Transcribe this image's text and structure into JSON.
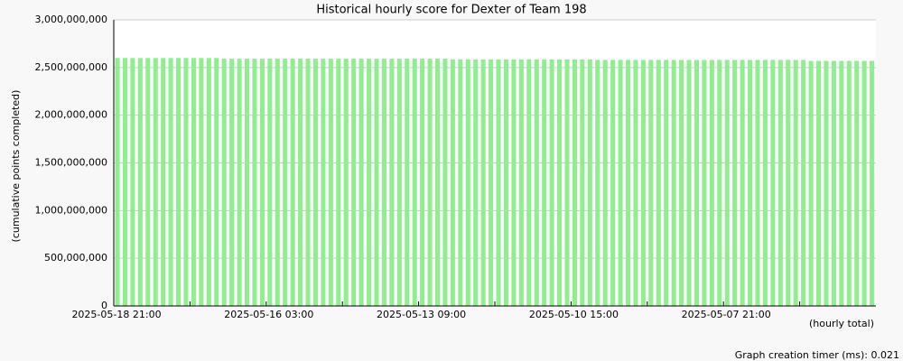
{
  "chart_data": {
    "type": "bar",
    "title": "Historical hourly score for Dexter of Team 198",
    "y_label": "(cumulative points completed)",
    "x_label": "(hourly total)",
    "footer": "Graph creation timer (ms): 0.021",
    "color": "#90ee90",
    "grid": true,
    "ylim": [
      0,
      3000000000
    ],
    "yticks": [
      {
        "value": 0,
        "label": "0"
      },
      {
        "value": 500000000,
        "label": "500,000,000"
      },
      {
        "value": 1000000000,
        "label": "1,000,000,000"
      },
      {
        "value": 1500000000,
        "label": "1,500,000,000"
      },
      {
        "value": 2000000000,
        "label": "2,000,000,000"
      },
      {
        "value": 2500000000,
        "label": "2,500,000,000"
      },
      {
        "value": 3000000000,
        "label": "3,000,000,000"
      }
    ],
    "categories": [
      "2025-05-18 21:00",
      null,
      null,
      null,
      null,
      null,
      null,
      null,
      null,
      null,
      null,
      null,
      null,
      null,
      null,
      null,
      null,
      null,
      null,
      null,
      "2025-05-16 03:00",
      null,
      null,
      null,
      null,
      null,
      null,
      null,
      null,
      null,
      null,
      null,
      null,
      null,
      null,
      null,
      null,
      null,
      null,
      null,
      "2025-05-13 09:00",
      null,
      null,
      null,
      null,
      null,
      null,
      null,
      null,
      null,
      null,
      null,
      null,
      null,
      null,
      null,
      null,
      null,
      null,
      null,
      "2025-05-10 15:00",
      null,
      null,
      null,
      null,
      null,
      null,
      null,
      null,
      null,
      null,
      null,
      null,
      null,
      null,
      null,
      null,
      null,
      null,
      null,
      "2025-05-07 21:00",
      null,
      null,
      null,
      null,
      null,
      null,
      null,
      null,
      null,
      null,
      null,
      null,
      null,
      null,
      null,
      null,
      null,
      null,
      null
    ],
    "values": [
      2600000000,
      2600000000,
      2600000000,
      2600000000,
      2600000000,
      2600000000,
      2600000000,
      2600000000,
      2600000000,
      2600000000,
      2600000000,
      2600000000,
      2600000000,
      2600000000,
      2592000000,
      2592000000,
      2592000000,
      2592000000,
      2592000000,
      2592000000,
      2592000000,
      2592000000,
      2592000000,
      2592000000,
      2592000000,
      2592000000,
      2592000000,
      2592000000,
      2592000000,
      2592000000,
      2592000000,
      2592000000,
      2592000000,
      2592000000,
      2592000000,
      2592000000,
      2592000000,
      2592000000,
      2592000000,
      2592000000,
      2592000000,
      2592000000,
      2592000000,
      2592000000,
      2586000000,
      2586000000,
      2586000000,
      2586000000,
      2586000000,
      2586000000,
      2586000000,
      2586000000,
      2586000000,
      2586000000,
      2586000000,
      2586000000,
      2586000000,
      2586000000,
      2586000000,
      2586000000,
      2586000000,
      2586000000,
      2586000000,
      2580000000,
      2580000000,
      2580000000,
      2580000000,
      2580000000,
      2580000000,
      2580000000,
      2580000000,
      2580000000,
      2580000000,
      2580000000,
      2580000000,
      2580000000,
      2580000000,
      2580000000,
      2580000000,
      2580000000,
      2580000000,
      2580000000,
      2580000000,
      2580000000,
      2580000000,
      2580000000,
      2580000000,
      2580000000,
      2580000000,
      2580000000,
      2580000000,
      2570000000,
      2570000000,
      2570000000,
      2570000000,
      2570000000,
      2570000000,
      2570000000,
      2570000000,
      2570000000
    ]
  }
}
